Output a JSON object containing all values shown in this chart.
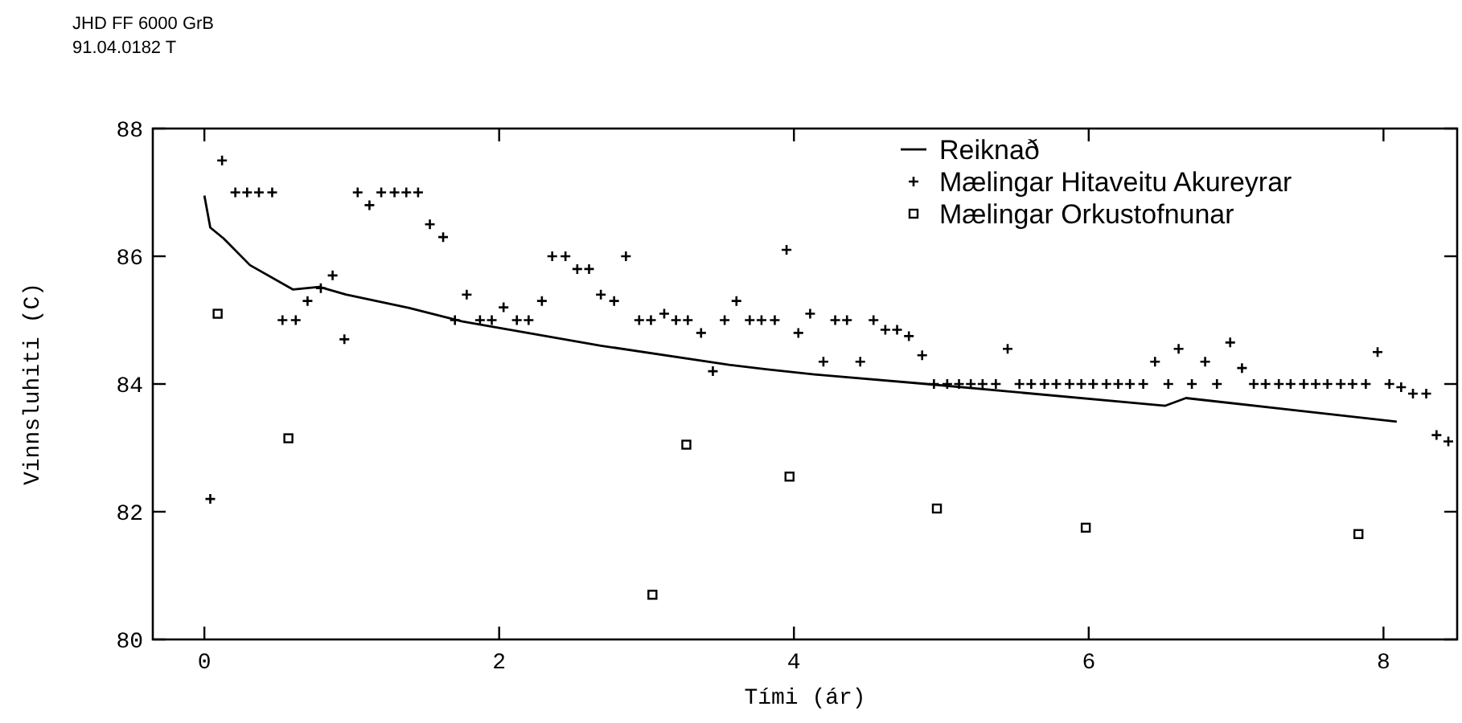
{
  "chart_data": {
    "type": "line",
    "xlabel": "Tími (ár)",
    "ylabel": "Vinnsluhiti (C)",
    "annotations": [
      "JHD FF 6000 GrB",
      "91.04.0182 T"
    ],
    "xlim": [
      -0.35,
      8.5
    ],
    "ylim": [
      80,
      88
    ],
    "xticks": [
      0,
      2,
      4,
      6,
      8
    ],
    "yticks": [
      80,
      82,
      84,
      86,
      88
    ],
    "grid": false,
    "legend": "top right",
    "series": [
      {
        "name": "Reiknað",
        "type": "line",
        "color": "#000000",
        "marker": "none",
        "line_style": "solid",
        "x": [
          0,
          0.04,
          0.13,
          0.31,
          0.6,
          0.78,
          0.96,
          1.39,
          1.75,
          2.69,
          3.56,
          3.81,
          4.14,
          4.9,
          6.52,
          6.66,
          8.09
        ],
        "values": [
          86.95,
          86.45,
          86.28,
          85.86,
          85.48,
          85.52,
          85.4,
          85.19,
          84.98,
          84.6,
          84.3,
          84.23,
          84.15,
          84.0,
          83.66,
          83.78,
          83.41
        ]
      },
      {
        "name": "Mælingar Hitaveitu Akureyrar",
        "type": "scatter",
        "color": "#000000",
        "marker": "cross",
        "x": [
          0.04,
          0.12,
          0.21,
          0.29,
          0.37,
          0.46,
          0.53,
          0.62,
          0.7,
          0.79,
          0.87,
          0.95,
          1.04,
          1.12,
          1.2,
          1.29,
          1.37,
          1.45,
          1.53,
          1.62,
          1.7,
          1.78,
          1.87,
          1.95,
          2.03,
          2.12,
          2.2,
          2.29,
          2.36,
          2.45,
          2.53,
          2.61,
          2.69,
          2.78,
          2.86,
          2.95,
          3.03,
          3.12,
          3.2,
          3.28,
          3.37,
          3.45,
          3.53,
          3.61,
          3.7,
          3.78,
          3.87,
          3.95,
          4.03,
          4.11,
          4.2,
          4.28,
          4.36,
          4.45,
          4.54,
          4.62,
          4.7,
          4.78,
          4.87,
          4.95,
          5.04,
          5.12,
          5.2,
          5.28,
          5.37,
          5.45,
          5.53,
          5.61,
          5.7,
          5.78,
          5.87,
          5.95,
          6.03,
          6.12,
          6.2,
          6.28,
          6.37,
          6.45,
          6.54,
          6.61,
          6.7,
          6.79,
          6.87,
          6.96,
          7.04,
          7.12,
          7.2,
          7.29,
          7.37,
          7.46,
          7.54,
          7.62,
          7.71,
          7.79,
          7.88,
          7.96,
          8.04,
          8.12,
          8.2,
          8.29,
          8.36,
          8.44
        ],
        "values": [
          82.2,
          87.5,
          87,
          87,
          87,
          87,
          85,
          85,
          85.3,
          85.5,
          85.7,
          84.7,
          87,
          86.8,
          87,
          87,
          87,
          87,
          86.5,
          86.3,
          85,
          85.4,
          85,
          85,
          85.2,
          85,
          85,
          85.3,
          86,
          86,
          85.8,
          85.8,
          85.4,
          85.3,
          86,
          85,
          85,
          85.1,
          85,
          85,
          84.8,
          84.2,
          85,
          85.3,
          85,
          85,
          85,
          86.1,
          84.8,
          85.1,
          84.35,
          85,
          85,
          84.35,
          85,
          84.85,
          84.85,
          84.75,
          84.45,
          84,
          84,
          84,
          84,
          84,
          84,
          84.55,
          84,
          84,
          84,
          84,
          84,
          84,
          84,
          84,
          84,
          84,
          84,
          84.35,
          84,
          84.55,
          84,
          84.35,
          84,
          84.65,
          84.25,
          84,
          84,
          84,
          84,
          84,
          84,
          84,
          84,
          84,
          84,
          84.5,
          84,
          83.95,
          83.85,
          83.85,
          83.2,
          83.1
        ]
      },
      {
        "name": "Mælingar Orkustofnunar",
        "type": "scatter",
        "color": "#000000",
        "marker": "square",
        "x": [
          0.09,
          0.57,
          3.04,
          3.27,
          3.97,
          4.97,
          5.98,
          7.83
        ],
        "values": [
          85.1,
          83.15,
          80.7,
          83.05,
          82.55,
          82.05,
          81.75,
          81.65
        ]
      }
    ]
  }
}
